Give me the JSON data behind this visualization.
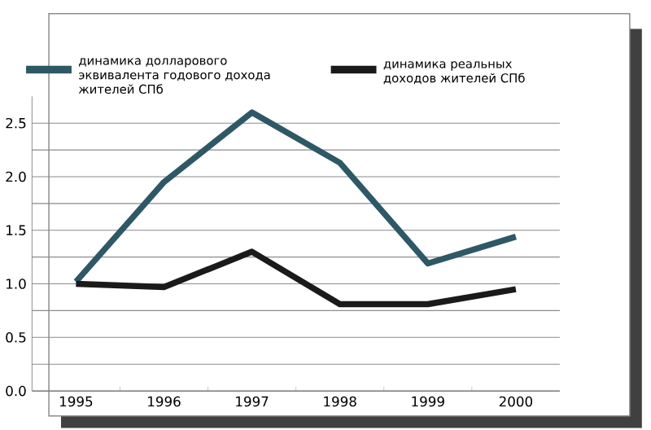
{
  "chart_data": {
    "type": "line",
    "categories": [
      "1995",
      "1996",
      "1997",
      "1998",
      "1999",
      "2000"
    ],
    "series": [
      {
        "name": "динамика долларового эквивалента годового дохода жителей СПб",
        "color": "#2e5866",
        "values": [
          1.02,
          1.95,
          2.6,
          2.13,
          1.19,
          1.44
        ]
      },
      {
        "name": "динамика реальных доходов жителей СПб",
        "color": "#1a1a1a",
        "values": [
          1.0,
          0.97,
          1.3,
          0.81,
          0.81,
          0.95
        ]
      }
    ],
    "ylim": [
      0,
      2.75
    ],
    "yticks": [
      {
        "value": 0,
        "label": "0.0"
      },
      {
        "value": 0.25,
        "label": null
      },
      0.5,
      {
        "value": 0.75,
        "label": null
      },
      {
        "value": 1,
        "label": "1.0"
      },
      {
        "value": 1.25,
        "label": null
      },
      1.5,
      {
        "value": 1.75,
        "label": null
      },
      {
        "value": 2,
        "label": "2.0"
      },
      {
        "value": 2.25,
        "label": null
      },
      2.5
    ],
    "grid": "y",
    "legend": "top",
    "line_style": "solid",
    "marker": "none"
  }
}
